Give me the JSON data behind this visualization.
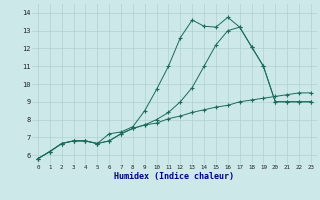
{
  "xlabel": "Humidex (Indice chaleur)",
  "xlim": [
    -0.5,
    23.5
  ],
  "ylim": [
    5.5,
    14.5
  ],
  "xticks": [
    0,
    1,
    2,
    3,
    4,
    5,
    6,
    7,
    8,
    9,
    10,
    11,
    12,
    13,
    14,
    15,
    16,
    17,
    18,
    19,
    20,
    21,
    22,
    23
  ],
  "yticks": [
    6,
    7,
    8,
    9,
    10,
    11,
    12,
    13,
    14
  ],
  "bg_color": "#cce8e8",
  "grid_color": "#b0d0d0",
  "line_color": "#1a6b5a",
  "xlabel_color": "#00008b",
  "line1_x": [
    0,
    1,
    2,
    3,
    4,
    5,
    6,
    7,
    8,
    9,
    10,
    11,
    12,
    13,
    14,
    15,
    16,
    17,
    18,
    19,
    20,
    21,
    22,
    23
  ],
  "line1_y": [
    5.8,
    6.2,
    6.65,
    6.8,
    6.8,
    6.65,
    6.8,
    7.2,
    7.5,
    7.7,
    7.8,
    8.05,
    8.2,
    8.4,
    8.55,
    8.7,
    8.8,
    9.0,
    9.1,
    9.2,
    9.3,
    9.4,
    9.5,
    9.5
  ],
  "line2_x": [
    0,
    1,
    2,
    3,
    4,
    5,
    6,
    7,
    8,
    9,
    10,
    11,
    12,
    13,
    14,
    15,
    16,
    17,
    18,
    19,
    20,
    21,
    22,
    23
  ],
  "line2_y": [
    5.8,
    6.2,
    6.65,
    6.8,
    6.8,
    6.65,
    7.2,
    7.3,
    7.6,
    8.5,
    9.7,
    11.0,
    12.6,
    13.6,
    13.25,
    13.2,
    13.75,
    13.2,
    12.1,
    11.0,
    9.0,
    9.0,
    9.0,
    9.0
  ],
  "line3_x": [
    0,
    1,
    2,
    3,
    4,
    5,
    6,
    7,
    8,
    9,
    10,
    11,
    12,
    13,
    14,
    15,
    16,
    17,
    18,
    19,
    20,
    21,
    22,
    23
  ],
  "line3_y": [
    5.8,
    6.2,
    6.65,
    6.8,
    6.8,
    6.65,
    6.8,
    7.2,
    7.5,
    7.7,
    8.0,
    8.4,
    9.0,
    9.8,
    11.0,
    12.2,
    13.0,
    13.2,
    12.1,
    11.0,
    9.0,
    9.0,
    9.0,
    9.0
  ]
}
